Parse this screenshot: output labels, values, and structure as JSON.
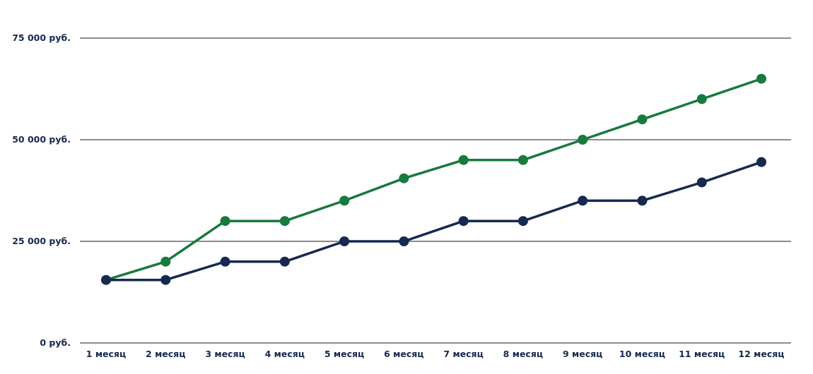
{
  "chart_data": {
    "type": "line",
    "title": "",
    "xlabel": "",
    "ylabel": "",
    "categories": [
      "1 месяц",
      "2 месяц",
      "3 месяц",
      "4 месяц",
      "5 месяц",
      "6 месяц",
      "7 месяц",
      "8 месяц",
      "9 месяц",
      "10 месяц",
      "11 месяц",
      "12 месяц"
    ],
    "y_ticks": [
      {
        "value": 0,
        "label": "0 руб."
      },
      {
        "value": 25000,
        "label": "25 000 руб."
      },
      {
        "value": 50000,
        "label": "50 000 руб."
      },
      {
        "value": 75000,
        "label": "75 000 руб."
      }
    ],
    "ylim": [
      0,
      75000
    ],
    "grid": true,
    "legend": "none",
    "series": [
      {
        "color": "#177a3e",
        "values": [
          15500,
          20000,
          30000,
          30000,
          35000,
          40500,
          45000,
          45000,
          50000,
          55000,
          60000,
          65000
        ]
      },
      {
        "color": "#16294f",
        "values": [
          15500,
          15500,
          20000,
          20000,
          25000,
          25000,
          30000,
          30000,
          35000,
          35000,
          39500,
          44500
        ]
      }
    ],
    "colors": {
      "grid": "#1a1a1a",
      "tick_text": "#16294f"
    }
  }
}
